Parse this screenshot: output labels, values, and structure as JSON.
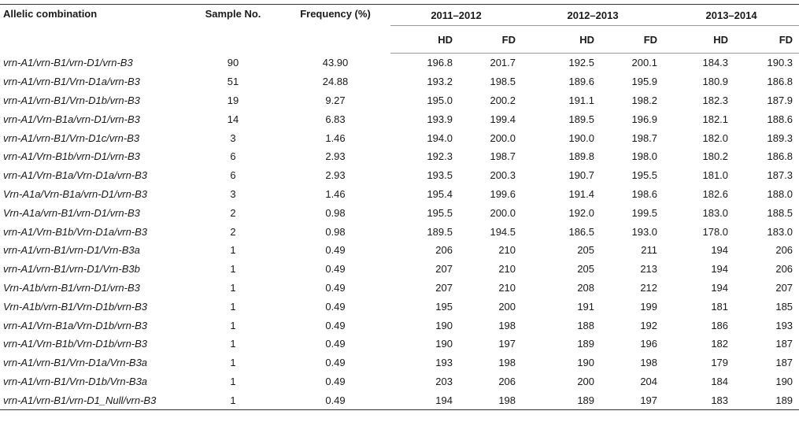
{
  "table": {
    "headers": {
      "allelic": "Allelic combination",
      "sample": "Sample No.",
      "frequency": "Frequency (%)",
      "season1": "2011–2012",
      "season2": "2012–2013",
      "season3": "2013–2014",
      "hd": "HD",
      "fd": "FD"
    },
    "rows": [
      [
        "vrn-A1/vrn-B1/vrn-D1/vrn-B3",
        "90",
        "43.90",
        "196.8",
        "201.7",
        "192.5",
        "200.1",
        "184.3",
        "190.3"
      ],
      [
        "vrn-A1/vrn-B1/Vrn-D1a/vrn-B3",
        "51",
        "24.88",
        "193.2",
        "198.5",
        "189.6",
        "195.9",
        "180.9",
        "186.8"
      ],
      [
        "vrn-A1/vrn-B1/Vrn-D1b/vrn-B3",
        "19",
        "9.27",
        "195.0",
        "200.2",
        "191.1",
        "198.2",
        "182.3",
        "187.9"
      ],
      [
        "vrn-A1/Vrn-B1a/vrn-D1/vrn-B3",
        "14",
        "6.83",
        "193.9",
        "199.4",
        "189.5",
        "196.9",
        "182.1",
        "188.6"
      ],
      [
        "vrn-A1/vrn-B1/Vrn-D1c/vrn-B3",
        "3",
        "1.46",
        "194.0",
        "200.0",
        "190.0",
        "198.7",
        "182.0",
        "189.3"
      ],
      [
        "vrn-A1/Vrn-B1b/vrn-D1/vrn-B3",
        "6",
        "2.93",
        "192.3",
        "198.7",
        "189.8",
        "198.0",
        "180.2",
        "186.8"
      ],
      [
        "vrn-A1/Vrn-B1a/Vrn-D1a/vrn-B3",
        "6",
        "2.93",
        "193.5",
        "200.3",
        "190.7",
        "195.5",
        "181.0",
        "187.3"
      ],
      [
        "Vrn-A1a/Vrn-B1a/vrn-D1/vrn-B3",
        "3",
        "1.46",
        "195.4",
        "199.6",
        "191.4",
        "198.6",
        "182.6",
        "188.0"
      ],
      [
        "Vrn-A1a/vrn-B1/vrn-D1/vrn-B3",
        "2",
        "0.98",
        "195.5",
        "200.0",
        "192.0",
        "199.5",
        "183.0",
        "188.5"
      ],
      [
        "vrn-A1/Vrn-B1b/Vrn-D1a/vrn-B3",
        "2",
        "0.98",
        "189.5",
        "194.5",
        "186.5",
        "193.0",
        "178.0",
        "183.0"
      ],
      [
        "vrn-A1/vrn-B1/vrn-D1/Vrn-B3a",
        "1",
        "0.49",
        "206",
        "210",
        "205",
        "211",
        "194",
        "206"
      ],
      [
        "vrn-A1/vrn-B1/vrn-D1/Vrn-B3b",
        "1",
        "0.49",
        "207",
        "210",
        "205",
        "213",
        "194",
        "206"
      ],
      [
        "Vrn-A1b/vrn-B1/vrn-D1/vrn-B3",
        "1",
        "0.49",
        "207",
        "210",
        "208",
        "212",
        "194",
        "207"
      ],
      [
        "Vrn-A1b/vrn-B1/Vrn-D1b/vrn-B3",
        "1",
        "0.49",
        "195",
        "200",
        "191",
        "199",
        "181",
        "185"
      ],
      [
        "vrn-A1/Vrn-B1a/Vrn-D1b/vrn-B3",
        "1",
        "0.49",
        "190",
        "198",
        "188",
        "192",
        "186",
        "193"
      ],
      [
        "vrn-A1/Vrn-B1b/Vrn-D1b/vrn-B3",
        "1",
        "0.49",
        "190",
        "197",
        "189",
        "196",
        "182",
        "187"
      ],
      [
        "vrn-A1/vrn-B1/Vrn-D1a/Vrn-B3a",
        "1",
        "0.49",
        "193",
        "198",
        "190",
        "198",
        "179",
        "187"
      ],
      [
        "vrn-A1/vrn-B1/Vrn-D1b/Vrn-B3a",
        "1",
        "0.49",
        "203",
        "206",
        "200",
        "204",
        "184",
        "190"
      ],
      [
        "vrn-A1/vrn-B1/vrn-D1_Null/vrn-B3",
        "1",
        "0.49",
        "194",
        "198",
        "189",
        "197",
        "183",
        "189"
      ]
    ]
  }
}
